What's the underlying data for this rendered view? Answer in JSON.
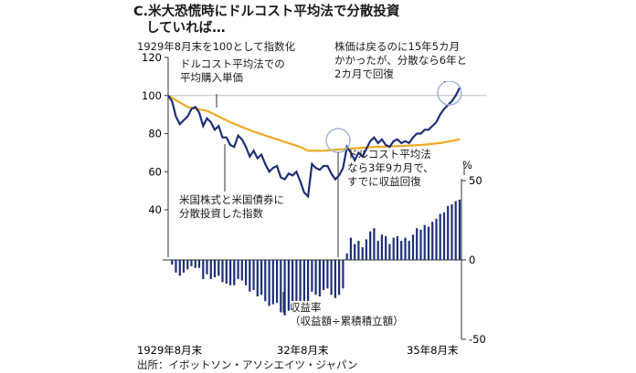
{
  "title_line1": "C.米大恐慌時にドルコスト平均法で分散投資",
  "title_line2": "していれば…",
  "subtitle": "1929年8月末を100として指数化",
  "source": "出所：イボットソン・アソシエイツ・ジャパン",
  "annotations": {
    "dca_cost_l1": "ドルコスト平均法での",
    "dca_cost_l2": "平均購入単価",
    "stock_recovery_l1": "株価は戻るのに15年5カ月",
    "stock_recovery_l2": "かかったが、分散なら6年と",
    "stock_recovery_l3": "2カ月で回復",
    "index_label_l1": "米国株式と米国債券に",
    "index_label_l2": "分散投資した指数",
    "dca_recovery_l1": "ドルコスト平均法",
    "dca_recovery_l2": "なら3年9カ月で、",
    "dca_recovery_l3": "すでに収益回復",
    "return_label_l1": "収益率",
    "return_label_l2": "（収益額÷累積積立額）"
  },
  "colors": {
    "index_line": "#1d2f78",
    "dca_line": "#f0a823",
    "bars": "#1d2f78",
    "circle": "#9fb7d8"
  },
  "chart_data": [
    {
      "type": "line",
      "x_tick_labels": [
        "1929年8月末",
        "32年8月末",
        "35年8月末"
      ],
      "ylim": [
        40,
        120
      ],
      "y_ticks": [
        40,
        60,
        80,
        100,
        120
      ],
      "reference_line": 100,
      "series": [
        {
          "name": "米国株式と米国債券に分散投資した指数",
          "x": [
            "1929-08",
            "1929-09",
            "1929-10",
            "1929-11",
            "1929-12",
            "1930-01",
            "1930-02",
            "1930-03",
            "1930-04",
            "1930-05",
            "1930-06",
            "1930-07",
            "1930-08",
            "1930-09",
            "1930-10",
            "1930-11",
            "1930-12",
            "1931-01",
            "1931-02",
            "1931-03",
            "1931-04",
            "1931-05",
            "1931-06",
            "1931-07",
            "1931-08",
            "1931-09",
            "1931-10",
            "1931-11",
            "1931-12",
            "1932-01",
            "1932-02",
            "1932-03",
            "1932-04",
            "1932-05",
            "1932-06",
            "1932-07",
            "1932-08",
            "1932-09",
            "1932-10",
            "1932-11",
            "1932-12",
            "1933-01",
            "1933-02",
            "1933-03",
            "1933-04",
            "1933-05",
            "1933-06",
            "1933-07",
            "1933-08",
            "1933-09",
            "1933-10",
            "1933-11",
            "1933-12",
            "1934-01",
            "1934-02",
            "1934-03",
            "1934-04",
            "1934-05",
            "1934-06",
            "1934-07",
            "1934-08",
            "1934-09",
            "1934-10",
            "1934-11",
            "1934-12",
            "1935-01",
            "1935-02",
            "1935-03",
            "1935-04",
            "1935-05",
            "1935-06",
            "1935-07",
            "1935-08",
            "1935-09",
            "1935-10",
            "1935-11"
          ],
          "values": [
            100,
            97,
            89,
            85,
            87,
            89,
            93,
            94,
            91,
            84,
            88,
            86,
            82,
            84,
            78,
            78,
            74,
            73,
            79,
            77,
            73,
            68,
            71,
            67,
            69,
            64,
            60,
            62,
            63,
            57,
            56,
            59,
            58,
            60,
            55,
            49,
            47,
            64,
            62,
            61,
            63,
            63,
            59,
            56,
            58,
            62,
            73,
            70,
            66,
            70,
            68,
            72,
            76,
            78,
            75,
            77,
            74,
            73,
            76,
            77,
            75,
            76,
            75,
            78,
            80,
            80,
            82,
            82,
            84,
            86,
            90,
            93,
            95,
            97,
            100,
            104
          ]
        },
        {
          "name": "ドルコスト平均法での平均購入単価",
          "x": [
            "1929-08",
            "1930-01",
            "1930-06",
            "1930-12",
            "1931-06",
            "1931-12",
            "1932-06",
            "1932-08",
            "1932-12",
            "1933-06",
            "1934-01",
            "1934-08",
            "1935-01",
            "1935-06",
            "1935-11"
          ],
          "values": [
            100,
            94,
            92,
            86,
            81,
            77,
            73,
            71,
            71,
            72,
            73,
            73.5,
            74,
            75,
            77
          ]
        }
      ]
    },
    {
      "type": "bar",
      "name": "収益率（収益額÷累積積立額）",
      "ylim": [
        -50,
        50
      ],
      "y_ticks": [
        50,
        0,
        -50
      ],
      "y_unit": "%",
      "values": [
        0,
        -3,
        -8,
        -10,
        -8,
        -6,
        -4,
        -5,
        -5,
        -12,
        -9,
        -12,
        -11,
        -10,
        -14,
        -15,
        -16,
        -16,
        -12,
        -13,
        -16,
        -20,
        -19,
        -23,
        -22,
        -26,
        -29,
        -28,
        -27,
        -33,
        -35,
        -32,
        -33,
        -30,
        -36,
        -41,
        -43,
        -20,
        -22,
        -23,
        -19,
        -18,
        -22,
        -24,
        -22,
        -18,
        4,
        14,
        10,
        12,
        8,
        13,
        18,
        20,
        12,
        16,
        15,
        10,
        14,
        15,
        12,
        14,
        12,
        16,
        20,
        19,
        22,
        21,
        24,
        26,
        29,
        30,
        34,
        35,
        37,
        38
      ]
    }
  ]
}
